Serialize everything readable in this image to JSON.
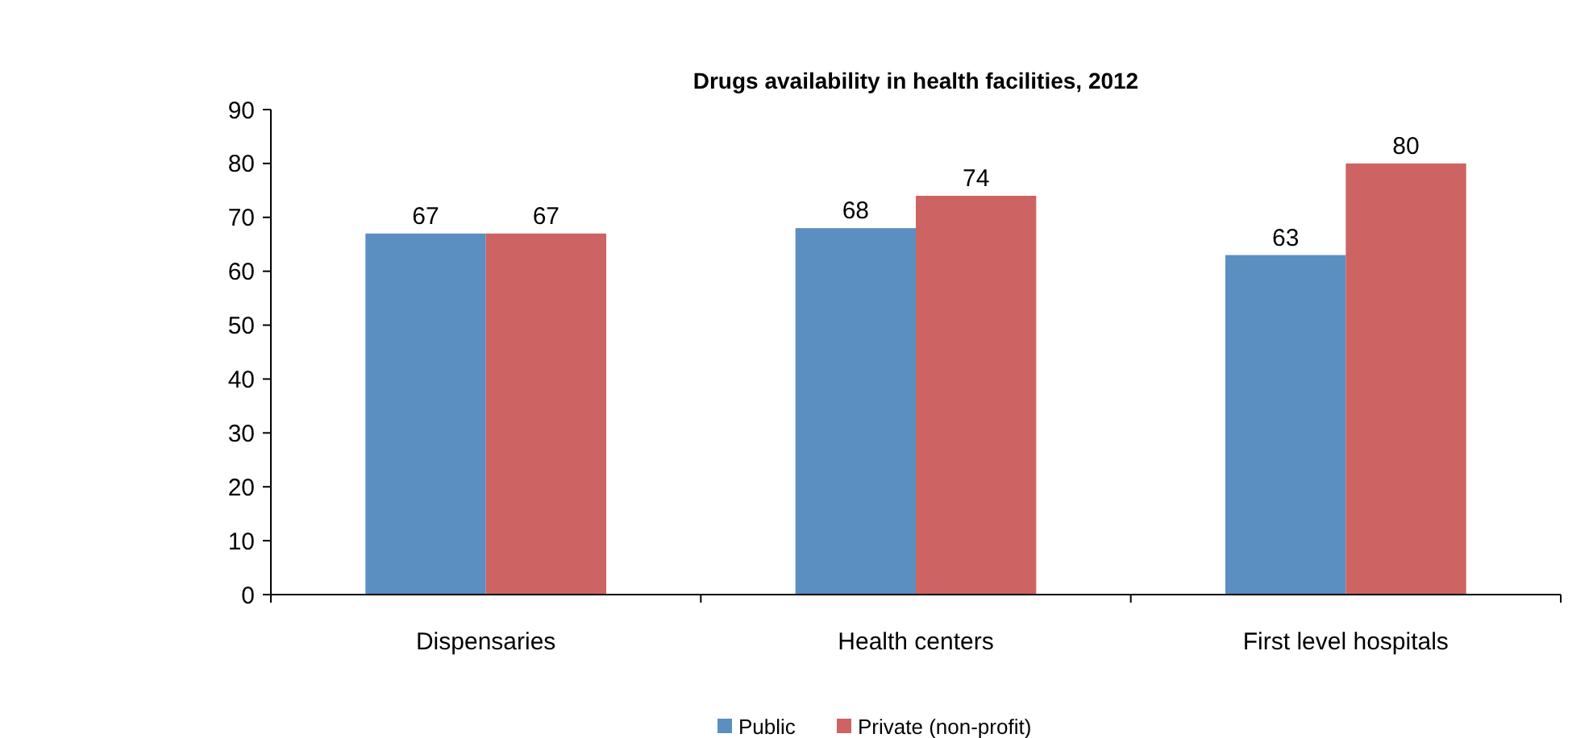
{
  "chart_data": {
    "type": "bar",
    "title": "Drugs availability in health facilities, 2012",
    "categories": [
      "Dispensaries",
      "Health centers",
      "First level hospitals"
    ],
    "series": [
      {
        "name": "Public",
        "color": "#5b8ec1",
        "values": [
          67,
          68,
          63
        ]
      },
      {
        "name": "Private (non-profit)",
        "color": "#cd6363",
        "values": [
          67,
          74,
          80
        ]
      }
    ],
    "ylim": [
      0,
      90
    ],
    "yticks": [
      0,
      10,
      20,
      30,
      40,
      50,
      60,
      70,
      80,
      90
    ],
    "grid": false,
    "legend": "bottom",
    "data_labels": true
  }
}
